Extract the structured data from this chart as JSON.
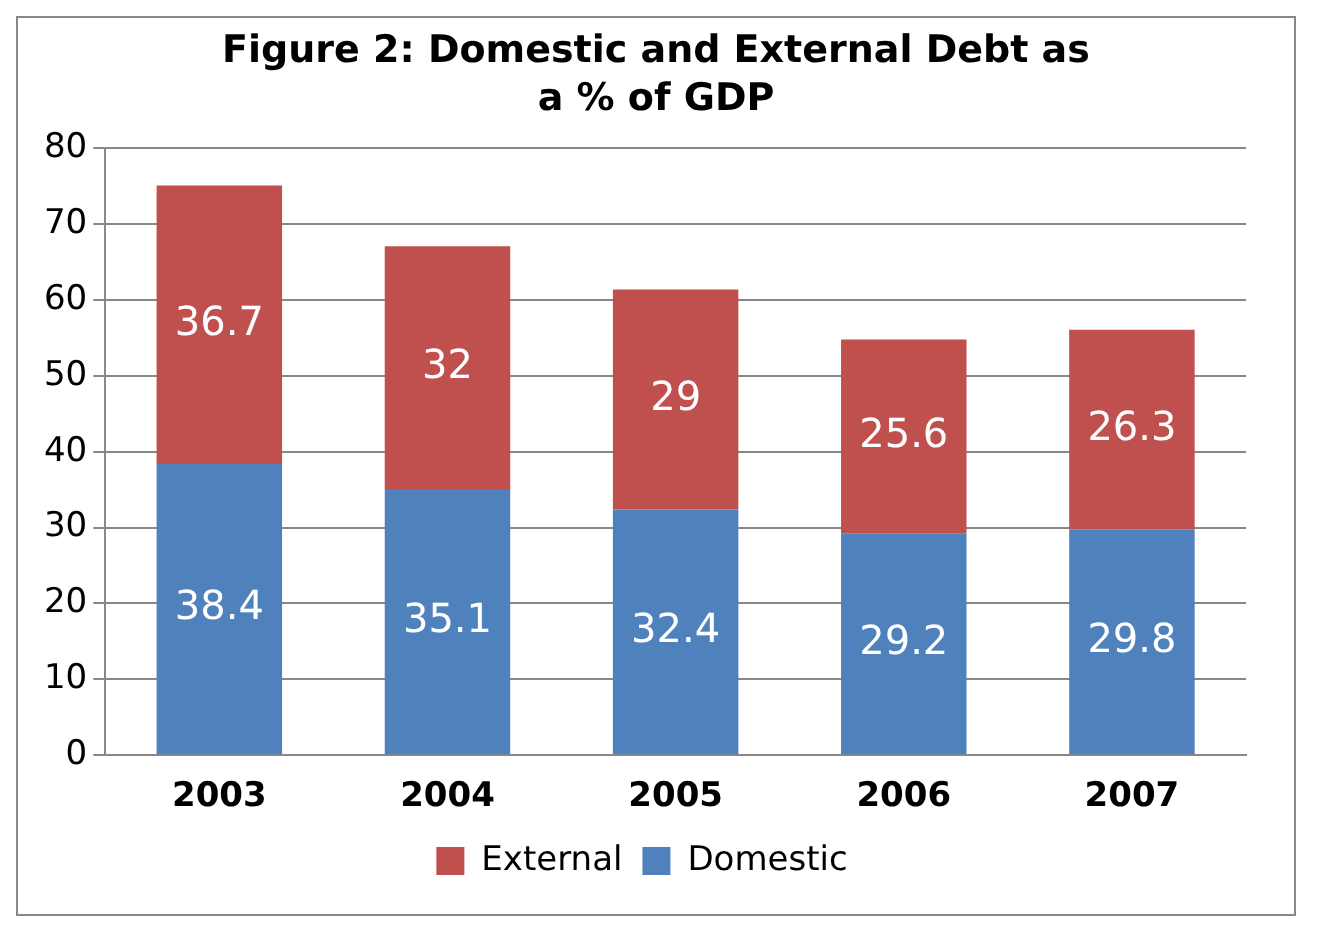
{
  "chart_data": {
    "type": "bar",
    "title": "Figure 2:  Domestic and  External Debt as a % of GDP",
    "categories": [
      "2003",
      "2004",
      "2005",
      "2006",
      "2007"
    ],
    "stacked": true,
    "series": [
      {
        "name": "Domestic",
        "color": "#4f81bd",
        "values": [
          38.4,
          35.1,
          32.4,
          29.2,
          29.8
        ]
      },
      {
        "name": "External",
        "color": "#c0504d",
        "values": [
          36.7,
          32,
          29,
          25.6,
          26.3
        ]
      }
    ],
    "ylim": [
      0,
      80
    ],
    "yticks": [
      0,
      10,
      20,
      30,
      40,
      50,
      60,
      70,
      80
    ],
    "grid": "y",
    "legend": "bottom",
    "data_labels": true
  }
}
